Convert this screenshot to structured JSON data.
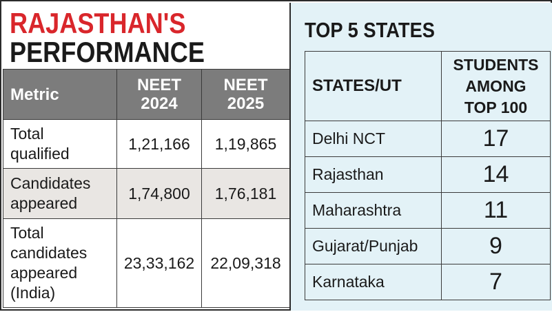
{
  "left": {
    "title_line1": "RAJASTHAN'S",
    "title_line2": "PERFORMANCE",
    "headers": {
      "metric": "Metric",
      "col1": "NEET 2024",
      "col2": "NEET 2025"
    },
    "rows": [
      {
        "label": "Total qualified",
        "v2024": "1,21,166",
        "v2025": "1,19,865"
      },
      {
        "label": "Candidates appeared",
        "v2024": "1,74,800",
        "v2025": "1,76,181"
      },
      {
        "label": "Total candidates appeared (India)",
        "v2024": "23,33,162",
        "v2025": "22,09,318"
      }
    ]
  },
  "right": {
    "title": "TOP 5 STATES",
    "headers": {
      "state": "STATES/UT",
      "students": "STUDENTS AMONG TOP 100"
    },
    "rows": [
      {
        "state": "Delhi NCT",
        "count": "17"
      },
      {
        "state": "Rajasthan",
        "count": "14"
      },
      {
        "state": "Maharashtra",
        "count": "11"
      },
      {
        "state": "Gujarat/Punjab",
        "count": "9"
      },
      {
        "state": "Karnataka",
        "count": "7"
      }
    ]
  },
  "colors": {
    "title_red": "#d9262b",
    "header_gray": "#7c7c7c",
    "row_alt": "#e9e6e3",
    "panel_blue": "#e3f2f7"
  }
}
